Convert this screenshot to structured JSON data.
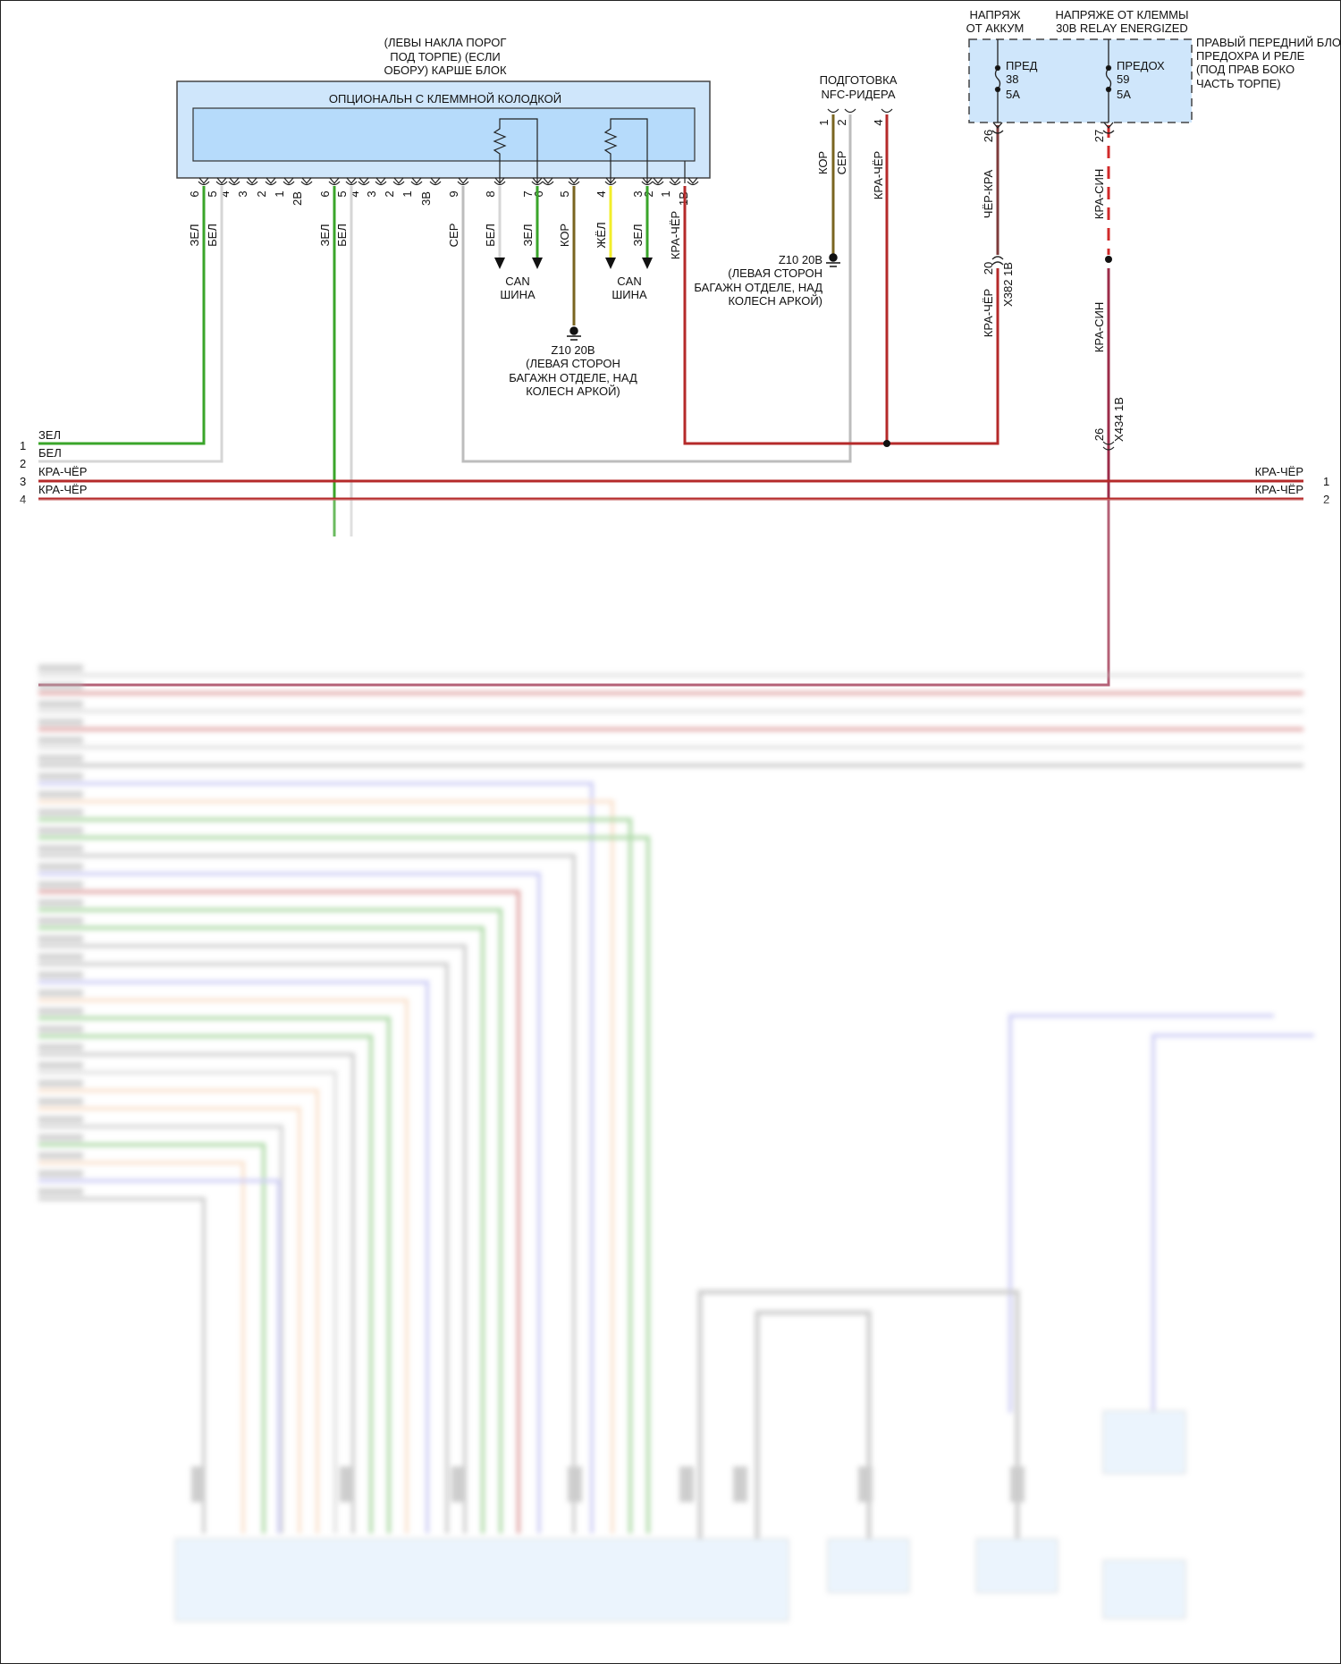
{
  "colors": {
    "green": "#3aa52a",
    "white": "#cfcfcf",
    "gray": "#b5b5b5",
    "brown": "#7a6520",
    "yellow": "#f2ee2a",
    "red": "#b52a2a",
    "dark_red": "#8e2b2b",
    "box_fill": "#cfe6fb",
    "inner_fill": "#b6dbfb",
    "blue": "#8b8be8",
    "orange": "#f2b98a"
  },
  "module": {
    "location_lines": [
      "(ЛЕВЫ НАКЛА ПОРОГ",
      "ПОД ТОРПЕ) (ЕСЛИ",
      "ОБОРУ) КАРШЕ БЛОК"
    ],
    "title": "ОПЦИОНАЛЬН С КЛЕММНОЙ КОЛОДКОЙ",
    "pins": [
      "6",
      "5",
      "4",
      "3",
      "2",
      "1",
      "2B",
      "6",
      "5",
      "4",
      "3",
      "2",
      "1",
      "3B",
      "9",
      "8",
      "7",
      "6",
      "5",
      "4",
      "3",
      "2",
      "1",
      "1B"
    ],
    "wire_labels": [
      "ЗЕЛ",
      "БЕЛ",
      "ЗЕЛ",
      "БЕЛ",
      "СЕР",
      "БЕЛ",
      "ЗЕЛ",
      "КОР",
      "ЖЁЛ",
      "ЗЕЛ",
      "КРА-ЧЁР"
    ]
  },
  "can_bus": [
    {
      "line1": "CAN",
      "line2": "ШИНА"
    },
    {
      "line1": "CAN",
      "line2": "ШИНА"
    }
  ],
  "ground_1": [
    "Z10 20B",
    "(ЛЕВАЯ СТОРОН",
    "БАГАЖН ОТДЕЛЕ, НАД",
    "КОЛЕСН АРКОЙ)"
  ],
  "ground_2": [
    "Z10 20B",
    "(ЛЕВАЯ СТОРОН",
    "БАГАЖН ОТДЕЛЕ, НАД",
    "КОЛЕСН АРКОЙ)"
  ],
  "nfc": {
    "title_lines": [
      "ПОДГОТОВКА",
      "NFC-РИДЕРА"
    ],
    "pins": [
      "1",
      "2",
      "4"
    ],
    "wire_labels": [
      "КОР",
      "СЕР",
      "КРА-ЧЁР"
    ]
  },
  "fuse_box": {
    "supply_1": [
      "НАПРЯЖ",
      "ОТ АККУМ"
    ],
    "supply_2": [
      "НАПРЯЖЕ ОТ КЛЕММЫ",
      "30B RELAY ENERGIZED"
    ],
    "location_lines": [
      "ПРАВЫЙ ПЕРЕДНИЙ БЛОК",
      "ПРЕДОХРА И РЕЛЕ",
      "(ПОД ПРАВ БОКО",
      "ЧАСТЬ ТОРПЕ)"
    ],
    "fuse_1": [
      "ПРЕД",
      "38",
      "5A"
    ],
    "fuse_2": [
      "ПРЕДОХ",
      "59",
      "5A"
    ],
    "pin_1": "26",
    "pin_2": "27",
    "wire_1_upper": "ЧЁР-КРА",
    "wire_1_pin": "20",
    "wire_1_connector": "X382 1B",
    "wire_1_lower": "КРА-ЧЁР",
    "wire_2_upper": "КРА-СИН",
    "wire_2_lower": "КРА-СИН",
    "wire_2_pin": "26",
    "wire_2_connector": "X434 1B"
  },
  "left_rows": [
    {
      "num": "1",
      "label": "ЗЕЛ"
    },
    {
      "num": "2",
      "label": "БЕЛ"
    },
    {
      "num": "3",
      "label": "КРА-ЧЁР"
    },
    {
      "num": "4",
      "label": "КРА-ЧЁР"
    }
  ],
  "right_rows": [
    {
      "num": "1",
      "label": "КРА-ЧЁР"
    },
    {
      "num": "2",
      "label": "КРА-ЧЁР"
    }
  ]
}
